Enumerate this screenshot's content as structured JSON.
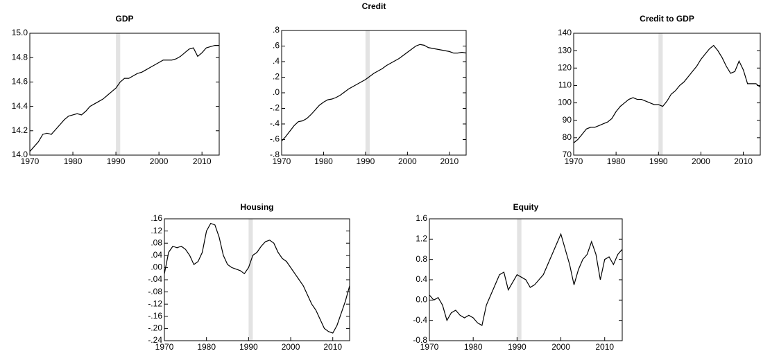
{
  "chart_data": [
    {
      "type": "line",
      "title": "GDP",
      "color": "#000000",
      "shade": [
        1990,
        1991
      ],
      "shade_color": "#e3e3e3",
      "x": [
        1970,
        1971,
        1972,
        1973,
        1974,
        1975,
        1976,
        1977,
        1978,
        1979,
        1980,
        1981,
        1982,
        1983,
        1984,
        1985,
        1986,
        1987,
        1988,
        1989,
        1990,
        1991,
        1992,
        1993,
        1994,
        1995,
        1996,
        1997,
        1998,
        1999,
        2000,
        2001,
        2002,
        2003,
        2004,
        2005,
        2006,
        2007,
        2008,
        2009,
        2010,
        2011,
        2012,
        2013,
        2014
      ],
      "values": [
        14.03,
        14.07,
        14.11,
        14.17,
        14.18,
        14.17,
        14.21,
        14.25,
        14.29,
        14.32,
        14.33,
        14.34,
        14.33,
        14.36,
        14.4,
        14.42,
        14.44,
        14.46,
        14.49,
        14.52,
        14.55,
        14.6,
        14.63,
        14.63,
        14.65,
        14.67,
        14.68,
        14.7,
        14.72,
        14.74,
        14.76,
        14.78,
        14.78,
        14.78,
        14.79,
        14.81,
        14.84,
        14.87,
        14.88,
        14.81,
        14.84,
        14.88,
        14.89,
        14.9,
        14.9
      ],
      "xlim": [
        1970,
        2014
      ],
      "xticks": [
        1970,
        1980,
        1990,
        2000,
        2010
      ],
      "ylim": [
        14.0,
        15.0
      ],
      "yticks": [
        {
          "value": 14.0,
          "label": "14.0"
        },
        14.2,
        14.4,
        14.6,
        14.8,
        {
          "value": 15.0,
          "label": "15.0"
        }
      ]
    },
    {
      "type": "line",
      "title": "Credit",
      "color": "#000000",
      "shade": [
        1990,
        1991
      ],
      "shade_color": "#e3e3e3",
      "x": [
        1970,
        1971,
        1972,
        1973,
        1974,
        1975,
        1976,
        1977,
        1978,
        1979,
        1980,
        1981,
        1982,
        1983,
        1984,
        1985,
        1986,
        1987,
        1988,
        1989,
        1990,
        1991,
        1992,
        1993,
        1994,
        1995,
        1996,
        1997,
        1998,
        1999,
        2000,
        2001,
        2002,
        2003,
        2004,
        2005,
        2006,
        2007,
        2008,
        2009,
        2010,
        2011,
        2012,
        2013,
        2014
      ],
      "values": [
        -0.62,
        -0.56,
        -0.49,
        -0.42,
        -0.37,
        -0.36,
        -0.33,
        -0.28,
        -0.22,
        -0.16,
        -0.12,
        -0.09,
        -0.08,
        -0.06,
        -0.03,
        0.01,
        0.05,
        0.08,
        0.11,
        0.14,
        0.17,
        0.21,
        0.25,
        0.28,
        0.31,
        0.35,
        0.38,
        0.41,
        0.44,
        0.48,
        0.52,
        0.56,
        0.6,
        0.62,
        0.61,
        0.58,
        0.57,
        0.56,
        0.55,
        0.54,
        0.53,
        0.51,
        0.51,
        0.52,
        0.51
      ],
      "xlim": [
        1970,
        2014
      ],
      "xticks": [
        1970,
        1980,
        1990,
        2000,
        2010
      ],
      "ylim": [
        -0.8,
        0.8
      ],
      "yticks": [
        {
          "value": -0.8,
          "label": "-.8"
        },
        {
          "value": -0.6,
          "label": "-.6"
        },
        {
          "value": -0.4,
          "label": "-.4"
        },
        {
          "value": -0.2,
          "label": "-.2"
        },
        {
          "value": 0,
          "label": ".0"
        },
        {
          "value": 0.2,
          "label": ".2"
        },
        {
          "value": 0.4,
          "label": ".4"
        },
        {
          "value": 0.6,
          "label": ".6"
        },
        {
          "value": 0.8,
          "label": ".8"
        }
      ]
    },
    {
      "type": "line",
      "title": "Credit to GDP",
      "color": "#000000",
      "shade": [
        1990,
        1991
      ],
      "shade_color": "#e3e3e3",
      "x": [
        1970,
        1971,
        1972,
        1973,
        1974,
        1975,
        1976,
        1977,
        1978,
        1979,
        1980,
        1981,
        1982,
        1983,
        1984,
        1985,
        1986,
        1987,
        1988,
        1989,
        1990,
        1991,
        1992,
        1993,
        1994,
        1995,
        1996,
        1997,
        1998,
        1999,
        2000,
        2001,
        2002,
        2003,
        2004,
        2005,
        2006,
        2007,
        2008,
        2009,
        2010,
        2011,
        2012,
        2013,
        2014
      ],
      "values": [
        77,
        79,
        82,
        85,
        86,
        86,
        87,
        88,
        89,
        91,
        95,
        98,
        100,
        102,
        103,
        102,
        102,
        101,
        100,
        99,
        99,
        98,
        101,
        105,
        107,
        110,
        112,
        115,
        118,
        121,
        125,
        128,
        131,
        133,
        130,
        126,
        121,
        117,
        118,
        124,
        119,
        111,
        111,
        111,
        109
      ],
      "xlim": [
        1970,
        2014
      ],
      "xticks": [
        1970,
        1980,
        1990,
        2000,
        2010
      ],
      "ylim": [
        70,
        140
      ],
      "yticks": [
        70,
        80,
        90,
        100,
        110,
        120,
        130,
        140
      ]
    },
    {
      "type": "line",
      "title": "Housing",
      "color": "#000000",
      "shade": [
        1990,
        1991
      ],
      "shade_color": "#e3e3e3",
      "x": [
        1970,
        1971,
        1972,
        1973,
        1974,
        1975,
        1976,
        1977,
        1978,
        1979,
        1980,
        1981,
        1982,
        1983,
        1984,
        1985,
        1986,
        1987,
        1988,
        1989,
        1990,
        1991,
        1992,
        1993,
        1994,
        1995,
        1996,
        1997,
        1998,
        1999,
        2000,
        2001,
        2002,
        2003,
        2004,
        2005,
        2006,
        2007,
        2008,
        2009,
        2010,
        2011,
        2012,
        2013,
        2014
      ],
      "values": [
        -0.02,
        0.05,
        0.07,
        0.065,
        0.07,
        0.06,
        0.04,
        0.01,
        0.02,
        0.05,
        0.12,
        0.145,
        0.14,
        0.1,
        0.04,
        0.01,
        0.0,
        -0.005,
        -0.01,
        -0.02,
        0.0,
        0.04,
        0.05,
        0.07,
        0.085,
        0.09,
        0.08,
        0.05,
        0.03,
        0.02,
        0.0,
        -0.02,
        -0.04,
        -0.06,
        -0.09,
        -0.12,
        -0.14,
        -0.17,
        -0.2,
        -0.21,
        -0.215,
        -0.19,
        -0.15,
        -0.11,
        -0.06
      ],
      "xlim": [
        1970,
        2014
      ],
      "xticks": [
        1970,
        1980,
        1990,
        2000,
        2010
      ],
      "ylim": [
        -0.24,
        0.16
      ],
      "yticks": [
        {
          "value": -0.24,
          "label": "-.24"
        },
        {
          "value": -0.2,
          "label": "-.20"
        },
        {
          "value": -0.16,
          "label": "-.16"
        },
        {
          "value": -0.12,
          "label": "-.12"
        },
        {
          "value": -0.08,
          "label": "-.08"
        },
        {
          "value": -0.04,
          "label": "-.04"
        },
        {
          "value": 0,
          "label": ".00"
        },
        {
          "value": 0.04,
          "label": ".04"
        },
        {
          "value": 0.08,
          "label": ".08"
        },
        {
          "value": 0.12,
          "label": ".12"
        },
        {
          "value": 0.16,
          "label": ".16"
        }
      ]
    },
    {
      "type": "line",
      "title": "Equity",
      "color": "#000000",
      "shade": [
        1990,
        1991
      ],
      "shade_color": "#e3e3e3",
      "x": [
        1970,
        1971,
        1972,
        1973,
        1974,
        1975,
        1976,
        1977,
        1978,
        1979,
        1980,
        1981,
        1982,
        1983,
        1984,
        1985,
        1986,
        1987,
        1988,
        1989,
        1990,
        1991,
        1992,
        1993,
        1994,
        1995,
        1996,
        1997,
        1998,
        1999,
        2000,
        2001,
        2002,
        2003,
        2004,
        2005,
        2006,
        2007,
        2008,
        2009,
        2010,
        2011,
        2012,
        2013,
        2014
      ],
      "values": [
        0.1,
        0.0,
        0.05,
        -0.1,
        -0.4,
        -0.25,
        -0.2,
        -0.3,
        -0.35,
        -0.3,
        -0.35,
        -0.45,
        -0.5,
        -0.1,
        0.1,
        0.3,
        0.5,
        0.55,
        0.2,
        0.35,
        0.5,
        0.45,
        0.4,
        0.25,
        0.3,
        0.4,
        0.5,
        0.7,
        0.9,
        1.1,
        1.3,
        1.0,
        0.7,
        0.3,
        0.6,
        0.8,
        0.9,
        1.15,
        0.9,
        0.4,
        0.8,
        0.85,
        0.7,
        0.9,
        1.0
      ],
      "xlim": [
        1970,
        2014
      ],
      "xticks": [
        1970,
        1980,
        1990,
        2000,
        2010
      ],
      "ylim": [
        -0.8,
        1.6
      ],
      "yticks": [
        -0.8,
        -0.4,
        {
          "value": 0,
          "label": "0.0"
        },
        0.4,
        0.8,
        1.2,
        1.6
      ]
    }
  ]
}
